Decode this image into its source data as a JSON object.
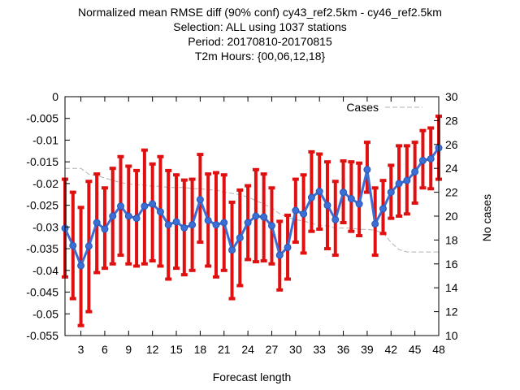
{
  "chart_data": {
    "type": "line",
    "title_lines": [
      "Normalized mean RMSE diff (90% conf) cy43_ref2.5km - cy46_ref2.5km",
      "Selection: ALL using  1037 stations",
      "Period: 20170810-20170815",
      "T2m    Hours: {00,06,12,18}"
    ],
    "xlabel": "Forecast length",
    "ylabel": "",
    "y2label": "No cases",
    "xlim": [
      1,
      48
    ],
    "ylim": [
      -0.055,
      0
    ],
    "y2lim": [
      10,
      30
    ],
    "x_ticks": [
      3,
      6,
      9,
      12,
      15,
      18,
      21,
      24,
      27,
      30,
      33,
      36,
      39,
      42,
      45,
      48
    ],
    "y_ticks": [
      0,
      -0.005,
      -0.01,
      -0.015,
      -0.02,
      -0.025,
      -0.03,
      -0.035,
      -0.04,
      -0.045,
      -0.05,
      -0.055
    ],
    "y_tick_labels": [
      "0",
      "-0.005",
      "-0.01",
      "-0.015",
      "-0.02",
      "-0.025",
      "-0.03",
      "-0.035",
      "-0.04",
      "-0.045",
      "-0.05",
      "-0.055"
    ],
    "y2_ticks": [
      10,
      12,
      14,
      16,
      18,
      20,
      22,
      24,
      26,
      28,
      30
    ],
    "legend_entry": "Cases",
    "legend_position": "top-right",
    "series_color": "#3b6fd6",
    "error_color": "#e01010",
    "cases_color": "#b0b0b0",
    "x": [
      1,
      2,
      3,
      4,
      5,
      6,
      7,
      8,
      9,
      10,
      11,
      12,
      13,
      14,
      15,
      16,
      17,
      18,
      19,
      20,
      21,
      22,
      23,
      24,
      25,
      26,
      27,
      28,
      29,
      30,
      31,
      32,
      33,
      34,
      35,
      36,
      37,
      38,
      39,
      40,
      41,
      42,
      43,
      44,
      45,
      46,
      47,
      48
    ],
    "mean": [
      -0.0303,
      -0.0343,
      -0.0389,
      -0.0344,
      -0.029,
      -0.0305,
      -0.0275,
      -0.0252,
      -0.0275,
      -0.028,
      -0.0252,
      -0.0247,
      -0.0265,
      -0.0295,
      -0.0288,
      -0.0302,
      -0.0295,
      -0.0237,
      -0.0285,
      -0.0295,
      -0.029,
      -0.0353,
      -0.0325,
      -0.029,
      -0.0275,
      -0.0277,
      -0.0297,
      -0.0365,
      -0.0347,
      -0.0262,
      -0.027,
      -0.0232,
      -0.0218,
      -0.025,
      -0.0283,
      -0.022,
      -0.0235,
      -0.0247,
      -0.0168,
      -0.0293,
      -0.0258,
      -0.022,
      -0.02,
      -0.0193,
      -0.0173,
      -0.0147,
      -0.0143,
      -0.0118
    ],
    "lower": [
      -0.0415,
      -0.0465,
      -0.0527,
      -0.0495,
      -0.0405,
      -0.0395,
      -0.0385,
      -0.0365,
      -0.0385,
      -0.039,
      -0.0385,
      -0.0378,
      -0.039,
      -0.042,
      -0.0395,
      -0.041,
      -0.04,
      -0.0335,
      -0.039,
      -0.0415,
      -0.04,
      -0.0465,
      -0.0435,
      -0.0375,
      -0.038,
      -0.0378,
      -0.0385,
      -0.0445,
      -0.042,
      -0.0335,
      -0.036,
      -0.031,
      -0.0305,
      -0.035,
      -0.0365,
      -0.029,
      -0.031,
      -0.032,
      -0.022,
      -0.0365,
      -0.0315,
      -0.028,
      -0.0275,
      -0.027,
      -0.0245,
      -0.021,
      -0.0212,
      -0.019
    ],
    "upper": [
      -0.019,
      -0.022,
      -0.0255,
      -0.0195,
      -0.0178,
      -0.021,
      -0.0165,
      -0.0138,
      -0.016,
      -0.017,
      -0.0123,
      -0.0155,
      -0.0138,
      -0.017,
      -0.018,
      -0.0192,
      -0.019,
      -0.0133,
      -0.0178,
      -0.0175,
      -0.018,
      -0.0243,
      -0.0215,
      -0.0205,
      -0.0168,
      -0.0178,
      -0.021,
      -0.0287,
      -0.0273,
      -0.019,
      -0.018,
      -0.0127,
      -0.0132,
      -0.015,
      -0.0195,
      -0.0148,
      -0.015,
      -0.0153,
      -0.0105,
      -0.021,
      -0.0193,
      -0.0158,
      -0.0113,
      -0.0113,
      -0.0105,
      -0.0078,
      -0.0072,
      -0.0045
    ],
    "cases_x": [
      1,
      3,
      4,
      5,
      6,
      7,
      8,
      9,
      10,
      11,
      12,
      13,
      14,
      15,
      16,
      17,
      18,
      19,
      20,
      21,
      22,
      23,
      24,
      25,
      26,
      27,
      28,
      29,
      30,
      31,
      32,
      33,
      34,
      35,
      36,
      37,
      38,
      39,
      40,
      41,
      42,
      43,
      44,
      45,
      46,
      47,
      48
    ],
    "cases": [
      24.0,
      24.0,
      23.5,
      23.4,
      23.2,
      23.0,
      22.8,
      22.7,
      22.6,
      22.6,
      22.5,
      22.5,
      22.4,
      22.4,
      22.4,
      22.3,
      22.3,
      22.2,
      22.2,
      22.0,
      21.9,
      21.8,
      21.6,
      21.3,
      21.0,
      20.7,
      20.2,
      19.9,
      19.7,
      19.6,
      19.4,
      19.2,
      19.2,
      19.0,
      19.0,
      19.0,
      18.9,
      18.9,
      18.8,
      18.6,
      17.8,
      17.2,
      17.0,
      17.0,
      17.0,
      17.0,
      17.0
    ]
  }
}
